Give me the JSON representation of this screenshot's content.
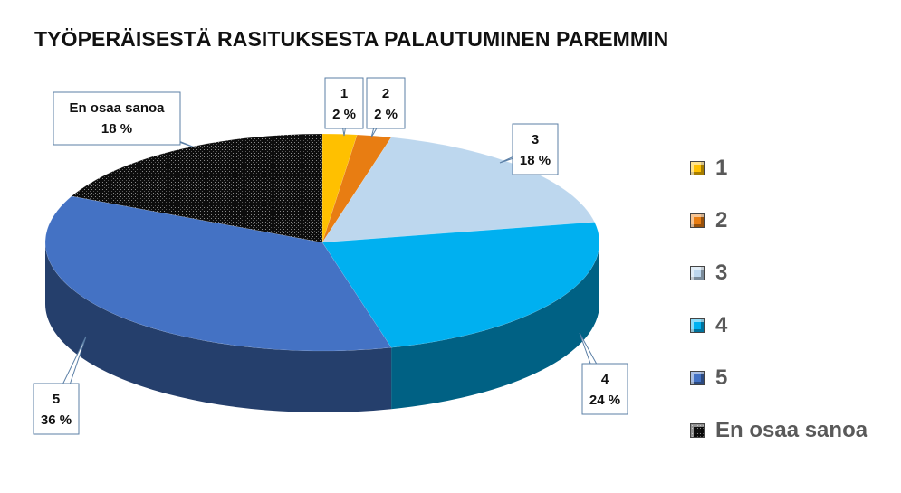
{
  "chart_data": {
    "type": "pie",
    "title": "TYÖPERÄISESTÄ RASITUKSESTA PALAUTUMINEN PAREMMIN",
    "legend_position": "right",
    "slices": [
      {
        "name": "1",
        "value": 2,
        "label": "2 %",
        "color": "#FFC000"
      },
      {
        "name": "2",
        "value": 2,
        "label": "2 %",
        "color": "#E87D12"
      },
      {
        "name": "3",
        "value": 18,
        "label": "18 %",
        "color": "#BDD7EE"
      },
      {
        "name": "4",
        "value": 24,
        "label": "24 %",
        "color": "#00B0F0"
      },
      {
        "name": "5",
        "value": 36,
        "label": "36 %",
        "color": "#4472C4"
      },
      {
        "name": "En osaa sanoa",
        "value": 18,
        "label": "18 %",
        "color": "#0D0D0D"
      }
    ]
  }
}
